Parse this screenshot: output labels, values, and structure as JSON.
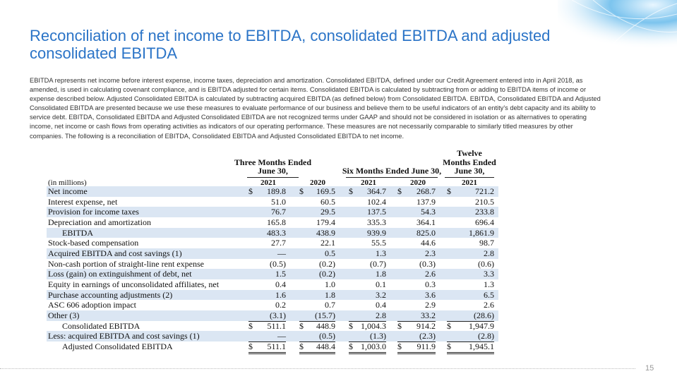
{
  "header": {
    "title": "Reconciliation of net income to EBITDA, consolidated EBITDA and adjusted consolidated EBITDA",
    "body": "EBITDA represents net income before interest expense, income taxes, depreciation and amortization.  Consolidated EBITDA, defined under our Credit Agreement entered into in April 2018, as amended, is used in calculating covenant compliance, and is EBITDA adjusted for certain items.  Consolidated EBITDA is calculated by subtracting from or adding to EBITDA items of income or expense described below.  Adjusted Consolidated EBITDA is calculated by subtracting acquired EBITDA (as defined below) from Consolidated EBITDA. EBITDA, Consolidated EBITDA and Adjusted Consolidated EBITDA are presented because we use these measures to evaluate performance of our business and believe them to be useful indicators of an entity's debt capacity and its ability to service debt.  EBITDA, Consolidated EBITDA and Adjusted Consolidated EBITDA are not recognized terms under GAAP and should not be considered in isolation or as alternatives to operating income, net income or cash flows from operating activities as indicators of our operating performance.  These measures are not necessarily comparable to similarly titled measures by other companies.  The following is a reconciliation of EBITDA, Consolidated EBITDA and Adjusted Consolidated EBITDA to net income."
  },
  "table": {
    "groups": [
      {
        "lines": [
          "Three Months Ended",
          "June 30,"
        ]
      },
      {
        "lines": [
          "Six Months Ended June 30,"
        ]
      },
      {
        "lines": [
          "Twelve",
          "Months Ended",
          "June 30,"
        ]
      }
    ],
    "unit": "(in millions)",
    "years": [
      "2021",
      "2020",
      "2021",
      "2020",
      "2021"
    ],
    "rows": [
      {
        "label": "Net income",
        "currency": "$",
        "cells": [
          "189.8",
          "169.5",
          "364.7",
          "268.7",
          "721.2"
        ]
      },
      {
        "label": "Interest expense, net",
        "cells": [
          "51.0",
          "60.5",
          "102.4",
          "137.9",
          "210.5"
        ]
      },
      {
        "label": "Provision for income taxes",
        "cells": [
          "76.7",
          "29.5",
          "137.5",
          "54.3",
          "233.8"
        ]
      },
      {
        "label": "Depreciation and amortization",
        "cells": [
          "165.8",
          "179.4",
          "335.3",
          "364.1",
          "696.4"
        ]
      },
      {
        "label": "EBITDA",
        "cells": [
          "483.3",
          "438.9",
          "939.9",
          "825.0",
          "1,861.9"
        ]
      },
      {
        "label": "Stock-based compensation",
        "cells": [
          "27.7",
          "22.1",
          "55.5",
          "44.6",
          "98.7"
        ]
      },
      {
        "label": "Acquired EBITDA and cost savings (1)",
        "cells": [
          "—",
          "0.5",
          "1.3",
          "2.3",
          "2.8"
        ]
      },
      {
        "label": "Non-cash portion of straight-line rent expense",
        "cells": [
          "(0.5)",
          "(0.2)",
          "(0.7)",
          "(0.3)",
          "(0.6)"
        ]
      },
      {
        "label": "Loss (gain) on extinguishment of debt, net",
        "cells": [
          "1.5",
          "(0.2)",
          "1.8",
          "2.6",
          "3.3"
        ]
      },
      {
        "label": "Equity in earnings of unconsolidated affiliates, net",
        "cells": [
          "0.4",
          "1.0",
          "0.1",
          "0.3",
          "1.3"
        ]
      },
      {
        "label": "Purchase accounting adjustments (2)",
        "cells": [
          "1.6",
          "1.8",
          "3.2",
          "3.6",
          "6.5"
        ]
      },
      {
        "label": "ASC 606 adoption impact",
        "cells": [
          "0.2",
          "0.7",
          "0.4",
          "2.9",
          "2.6"
        ]
      },
      {
        "label": "Other (3)",
        "cells": [
          "(3.1)",
          "(15.7)",
          "2.8",
          "33.2",
          "(28.6)"
        ]
      },
      {
        "label": "Consolidated EBITDA",
        "currency": "$",
        "cells": [
          "511.1",
          "448.9",
          "1,004.3",
          "914.2",
          "1,947.9"
        ]
      },
      {
        "label": "Less: acquired EBITDA and cost savings (1)",
        "cells": [
          "—",
          "(0.5)",
          "(1.3)",
          "(2.3)",
          "(2.8)"
        ]
      },
      {
        "label": "Adjusted Consolidated EBITDA",
        "currency": "$",
        "cells": [
          "511.1",
          "448.4",
          "1,003.0",
          "911.9",
          "1,945.1"
        ]
      }
    ]
  },
  "footer": {
    "page": "15"
  }
}
